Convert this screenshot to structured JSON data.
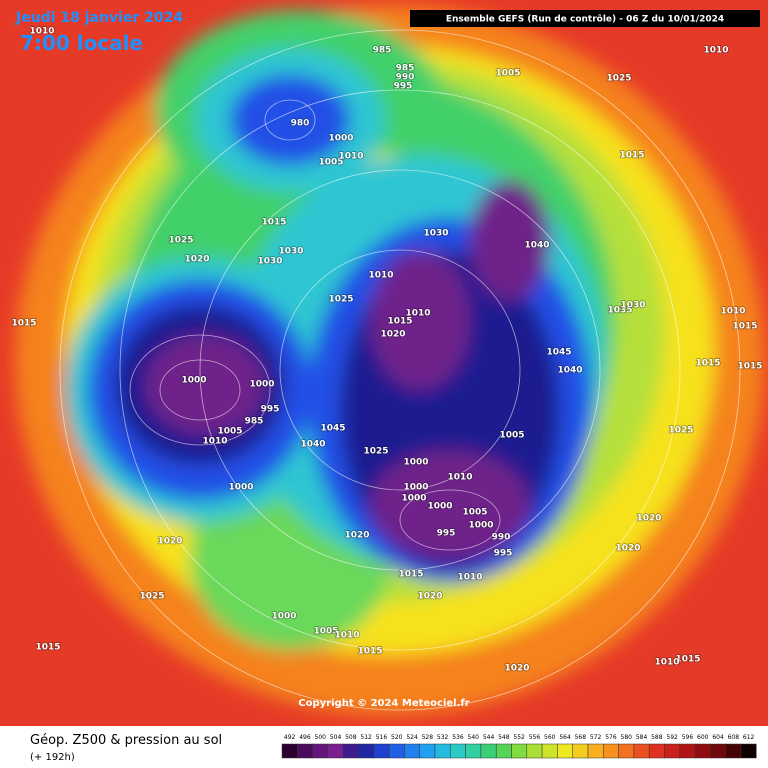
{
  "header": {
    "date": "Jeudi 18 janvier 2024",
    "time": "7:00 locale",
    "run": "Ensemble GEFS  (Run de contrôle)  -  06 Z du 10/01/2024"
  },
  "map": {
    "pressure_labels": [
      1010,
      985,
      985,
      990,
      995,
      1005,
      1010,
      1025,
      980,
      1000,
      1005,
      1010,
      1015,
      1015,
      1030,
      1030,
      1025,
      1020,
      1030,
      1040,
      1010,
      1025,
      1015,
      1010,
      1020,
      1035,
      1030,
      1015,
      1045,
      1040,
      1015,
      1015,
      1010,
      1015,
      1000,
      1000,
      995,
      985,
      1005,
      1010,
      1045,
      1040,
      1025,
      1005,
      1000,
      1010,
      1000,
      1000,
      1000,
      1005,
      1000,
      995,
      990,
      995,
      1000,
      1025,
      1020,
      1020,
      1020,
      1020,
      1015,
      1010,
      1020,
      1025,
      1000,
      1005,
      1010,
      1015,
      1015,
      1020,
      1015,
      1010
    ]
  },
  "footer": {
    "copyright": "Copyright © 2024 Meteociel.fr",
    "title": "Géop. Z500 & pression au sol",
    "lead": "(+ 192h)"
  },
  "colorbar": {
    "ticks": [
      492,
      496,
      500,
      504,
      508,
      512,
      516,
      520,
      524,
      528,
      532,
      536,
      540,
      544,
      548,
      552,
      556,
      560,
      564,
      568,
      572,
      576,
      580,
      584,
      588,
      592,
      596,
      600,
      604,
      608,
      612
    ]
  }
}
